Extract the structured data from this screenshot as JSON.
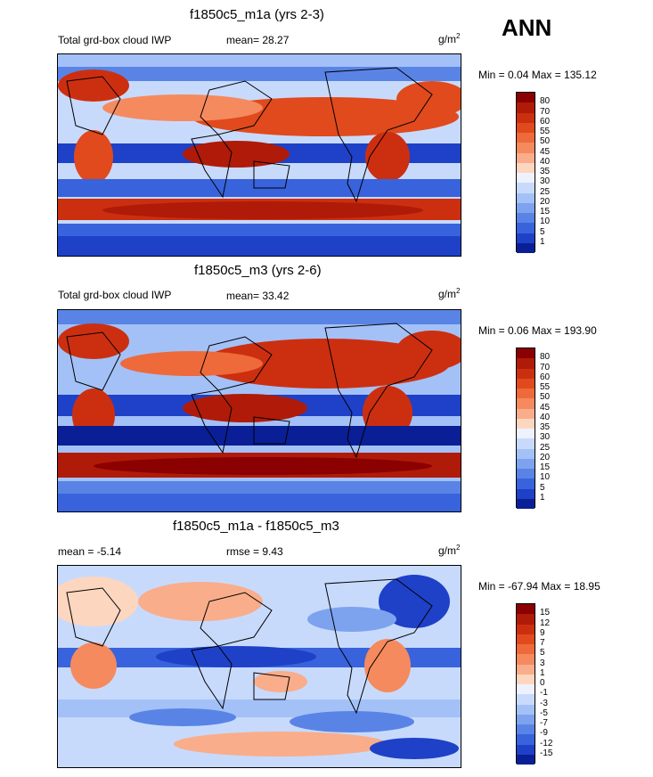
{
  "ann_label": "ANN",
  "panels": [
    {
      "title": "f1850c5_m1a (yrs 2-3)",
      "left_label": "Total grd-box cloud IWP",
      "center_label": "mean=  28.27",
      "units": "g/m",
      "units_sup": "2",
      "minmax": "Min =   0.04 Max = 135.12",
      "colorbar": {
        "labels": [
          "80",
          "70",
          "60",
          "55",
          "50",
          "45",
          "40",
          "35",
          "30",
          "25",
          "20",
          "15",
          "10",
          "5",
          "1"
        ],
        "colors": [
          "#8b0000",
          "#b01a08",
          "#cc2f10",
          "#e04a1c",
          "#ee6a3a",
          "#f58a5e",
          "#f9ad8a",
          "#fdd6c0",
          "#eef2ff",
          "#c8dafc",
          "#a3c1f7",
          "#7da3ef",
          "#5984e6",
          "#3863dc",
          "#1e41c8",
          "#0a1f96"
        ]
      },
      "map_style": "iwp1"
    },
    {
      "title": "f1850c5_m3 (yrs 2-6)",
      "left_label": "Total grd-box cloud IWP",
      "center_label": "mean=  33.42",
      "units": "g/m",
      "units_sup": "2",
      "minmax": "Min =   0.06 Max = 193.90",
      "colorbar": {
        "labels": [
          "80",
          "70",
          "60",
          "55",
          "50",
          "45",
          "40",
          "35",
          "30",
          "25",
          "20",
          "15",
          "10",
          "5",
          "1"
        ],
        "colors": [
          "#8b0000",
          "#b01a08",
          "#cc2f10",
          "#e04a1c",
          "#ee6a3a",
          "#f58a5e",
          "#f9ad8a",
          "#fdd6c0",
          "#eef2ff",
          "#c8dafc",
          "#a3c1f7",
          "#7da3ef",
          "#5984e6",
          "#3863dc",
          "#1e41c8",
          "#0a1f96"
        ]
      },
      "map_style": "iwp2"
    },
    {
      "title": "f1850c5_m1a - f1850c5_m3",
      "left_label": "mean =  -5.14",
      "center_label": "rmse =   9.43",
      "units": "g/m",
      "units_sup": "2",
      "minmax": "Min = -67.94 Max =  18.95",
      "colorbar": {
        "labels": [
          "15",
          "12",
          "9",
          "7",
          "5",
          "3",
          "1",
          "0",
          "-1",
          "-3",
          "-5",
          "-7",
          "-9",
          "-12",
          "-15"
        ],
        "colors": [
          "#8b0000",
          "#b01a08",
          "#cc2f10",
          "#e04a1c",
          "#ee6a3a",
          "#f58a5e",
          "#f9ad8a",
          "#fdd6c0",
          "#eef2ff",
          "#c8dafc",
          "#a3c1f7",
          "#7da3ef",
          "#5984e6",
          "#3863dc",
          "#1e41c8",
          "#0a1f96"
        ]
      },
      "map_style": "diff"
    }
  ]
}
